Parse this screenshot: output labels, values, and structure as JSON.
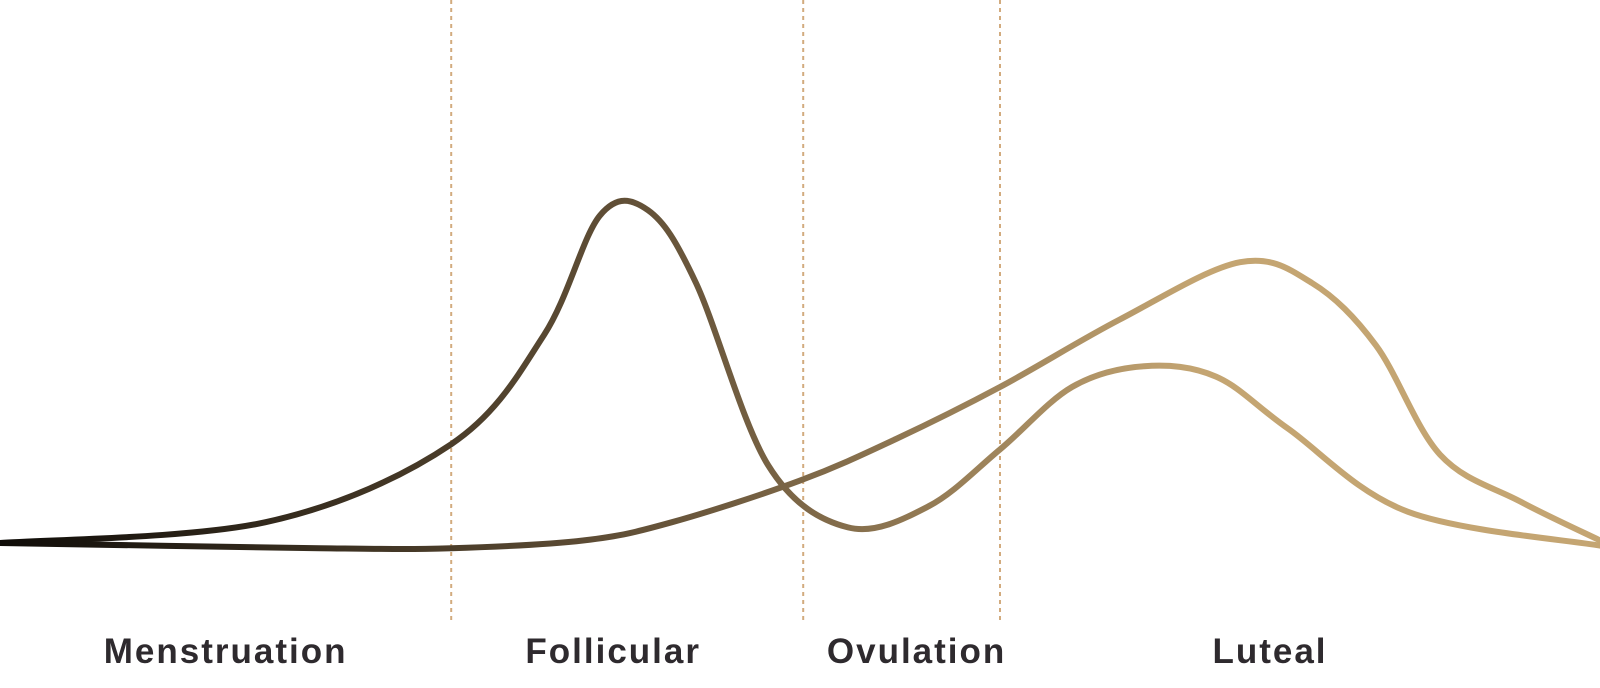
{
  "colors": {
    "line_start": "#0f0c08",
    "line_mid": "#6e5a3e",
    "line_end": "#c4a572",
    "divider": "#d2ab7e",
    "label": "#2e2a2e",
    "background": "#ffffff"
  },
  "chart_data": {
    "type": "line",
    "title": "",
    "xlabel": "",
    "ylabel": "",
    "grid": false,
    "legend": "none",
    "x_range": [
      0,
      100
    ],
    "y_range": [
      0,
      100
    ],
    "phases": [
      {
        "label": "Menstruation",
        "start": 0,
        "end": 28.2
      },
      {
        "label": "Follicular",
        "start": 28.2,
        "end": 50.2
      },
      {
        "label": "Ovulation",
        "start": 50.2,
        "end": 62.5
      },
      {
        "label": "Luteal",
        "start": 62.5,
        "end": 100
      }
    ],
    "dividers": [
      28.2,
      50.2,
      62.5
    ],
    "series": [
      {
        "values": [
          [
            0,
            0
          ],
          [
            16.6,
            4
          ],
          [
            28.2,
            19
          ],
          [
            34,
            40
          ],
          [
            37.5,
            63
          ],
          [
            40.5,
            64
          ],
          [
            43.5,
            50
          ],
          [
            48,
            15
          ],
          [
            53,
            3
          ],
          [
            58,
            7
          ],
          [
            62.5,
            18
          ],
          [
            67,
            30
          ],
          [
            71.5,
            34
          ],
          [
            76,
            32
          ],
          [
            80.5,
            22
          ],
          [
            88,
            6
          ],
          [
            100,
            -0.5
          ]
        ]
      },
      {
        "values": [
          [
            0,
            0
          ],
          [
            20,
            -1
          ],
          [
            28.2,
            -1
          ],
          [
            36.5,
            0.5
          ],
          [
            42,
            4
          ],
          [
            50,
            12
          ],
          [
            56,
            20
          ],
          [
            62.5,
            30
          ],
          [
            70,
            43
          ],
          [
            77.5,
            54
          ],
          [
            82,
            50
          ],
          [
            86,
            38
          ],
          [
            90,
            17
          ],
          [
            95,
            8
          ],
          [
            100,
            0.5
          ]
        ]
      }
    ]
  }
}
